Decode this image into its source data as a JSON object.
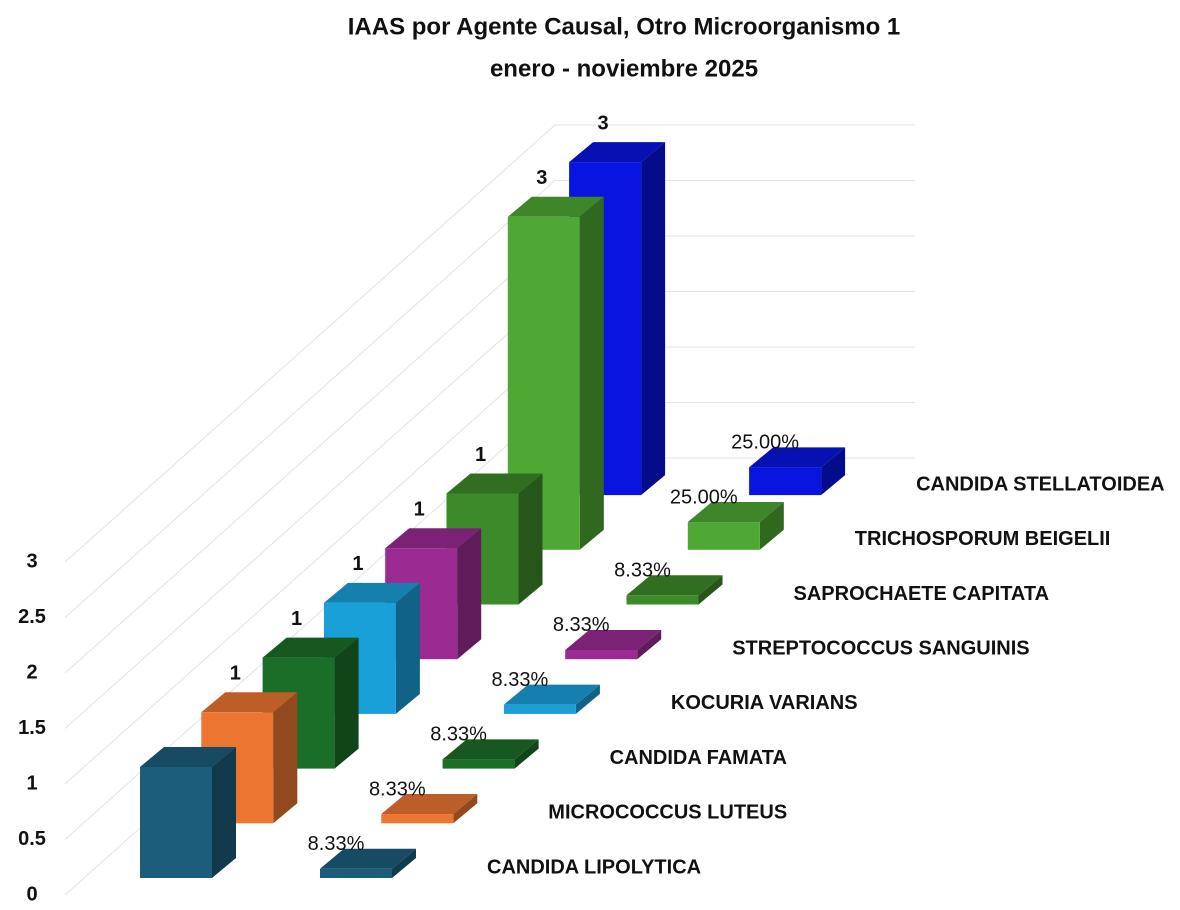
{
  "chart_data": {
    "type": "bar3d",
    "title": "IAAS por Agente Causal, Otro Microorganismo 1",
    "subtitle": "enero - noviembre 2025",
    "categories": [
      "CANDIDA LIPOLYTICA",
      "MICROCOCCUS LUTEUS",
      "CANDIDA FAMATA",
      "KOCURIA VARIANS",
      "STREPTOCOCCUS SANGUINIS",
      "SAPROCHAETE CAPITATA",
      "TRICHOSPORUM BEIGELII",
      "CANDIDA STELLATOIDEA"
    ],
    "colors": [
      "#1d5d7c",
      "#ec7532",
      "#1b6e28",
      "#1aa0d9",
      "#9b2b93",
      "#3d8a2a",
      "#4ea833",
      "#0814e0"
    ],
    "series": [
      {
        "values": [
          1,
          1,
          1,
          1,
          1,
          1,
          3,
          3
        ],
        "value_labels": [
          null,
          "1",
          "1",
          "1",
          "1",
          "1",
          "3",
          "3"
        ]
      },
      {
        "values": [
          0.0833,
          0.0833,
          0.0833,
          0.0833,
          0.0833,
          0.0833,
          0.25,
          0.25
        ],
        "value_labels": [
          "8.33%",
          "8.33%",
          "8.33%",
          "8.33%",
          "8.33%",
          "8.33%",
          "25.00%",
          "25.00%"
        ]
      }
    ],
    "ylim": [
      0,
      3
    ],
    "yticks": [
      0,
      0.5,
      1,
      1.5,
      2,
      2.5,
      3
    ],
    "grid": true
  }
}
